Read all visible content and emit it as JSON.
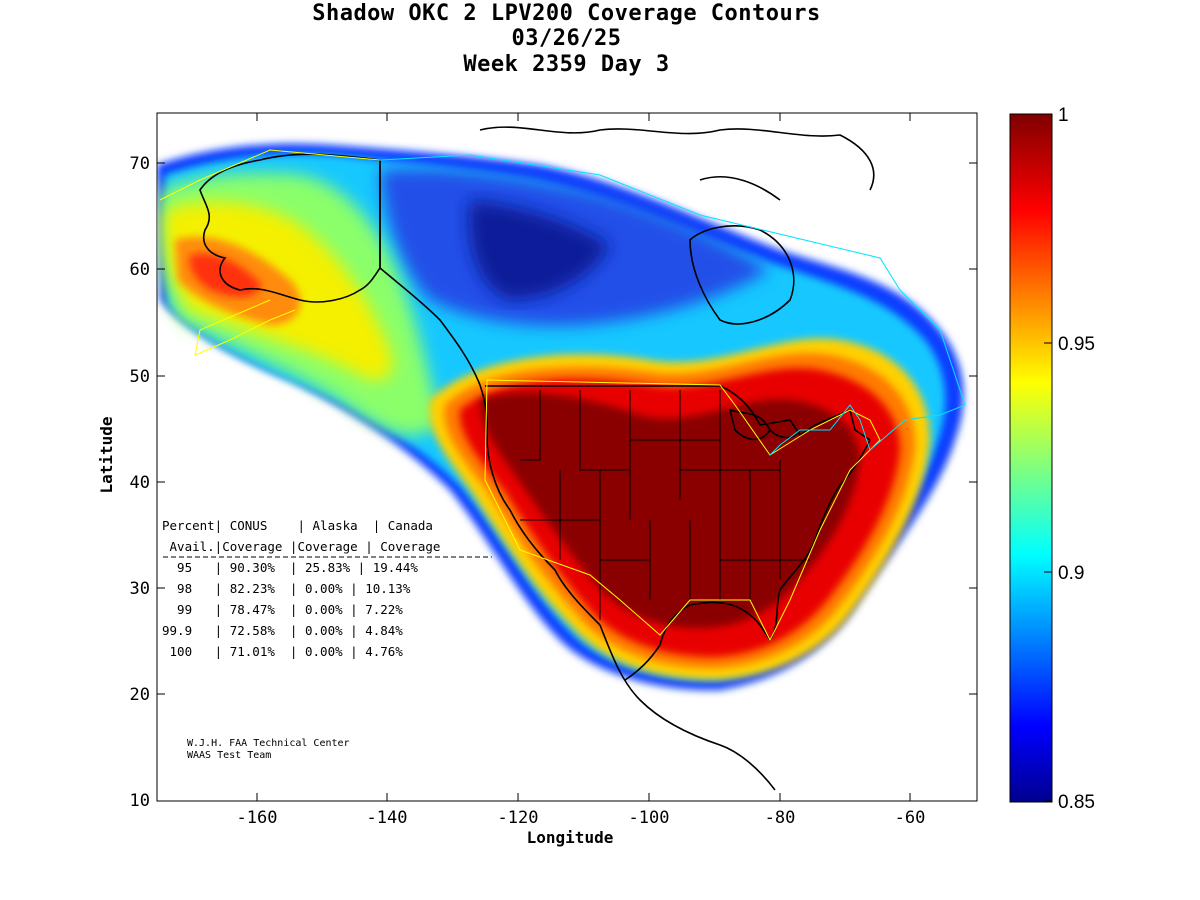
{
  "title": {
    "line1": "Shadow OKC 2 LPV200 Coverage Contours",
    "line2": "03/26/25",
    "line3": "Week 2359 Day 3"
  },
  "axes": {
    "xlabel": "Longitude",
    "ylabel": "Latitude",
    "x_ticks": [
      "-160",
      "-140",
      "-120",
      "-100",
      "-80",
      "-60"
    ],
    "y_ticks": [
      "70",
      "60",
      "50",
      "40",
      "30",
      "20",
      "10"
    ],
    "xlim": [
      -175,
      -50
    ],
    "ylim": [
      10,
      75
    ]
  },
  "colorbar": {
    "ticks": [
      "1",
      "0.95",
      "0.9",
      "0.85"
    ],
    "range": [
      0.85,
      1.0
    ],
    "colormap": "jet"
  },
  "stats_table": {
    "header1": "Percent| CONUS    | Alaska  | Canada",
    "header2": " Avail.|Coverage |Coverage | Coverage",
    "rows": [
      "  95   | 90.30%  | 25.83% | 19.44%",
      "  98   | 82.23%  | 0.00% | 10.13%",
      "  99   | 78.47%  | 0.00% | 7.22%",
      "99.9   | 72.58%  | 0.00% | 4.84%",
      " 100   | 71.01%  | 0.00% | 4.76%"
    ]
  },
  "credits": {
    "line1": "W.J.H. FAA Technical Center",
    "line2": "WAAS Test Team"
  },
  "chart_data": {
    "type": "heatmap",
    "title": "Shadow OKC 2 LPV200 Coverage Contours",
    "subtitle": "03/26/25 Week 2359 Day 3",
    "xlabel": "Longitude",
    "ylabel": "Latitude",
    "xlim": [
      -175,
      -50
    ],
    "ylim": [
      10,
      75
    ],
    "colorbar_range": [
      0.85,
      1.0
    ],
    "regions": [
      {
        "name": "CONUS",
        "availability": "1.0"
      },
      {
        "name": "Southwest Alaska",
        "availability": "0.96-0.97"
      },
      {
        "name": "Central Canada",
        "availability": "0.85-0.87"
      },
      {
        "name": "Coverage edge",
        "availability": "0.85-0.9"
      }
    ],
    "coverage_table": [
      {
        "percent": "95",
        "conus": "90.30%",
        "alaska": "25.83%",
        "canada": "19.44%"
      },
      {
        "percent": "98",
        "conus": "82.23%",
        "alaska": "0.00%",
        "canada": "10.13%"
      },
      {
        "percent": "99",
        "conus": "78.47%",
        "alaska": "0.00%",
        "canada": "7.22%"
      },
      {
        "percent": "99.9",
        "conus": "72.58%",
        "alaska": "0.00%",
        "canada": "4.84%"
      },
      {
        "percent": "100",
        "conus": "71.01%",
        "alaska": "0.00%",
        "canada": "4.76%"
      }
    ]
  }
}
